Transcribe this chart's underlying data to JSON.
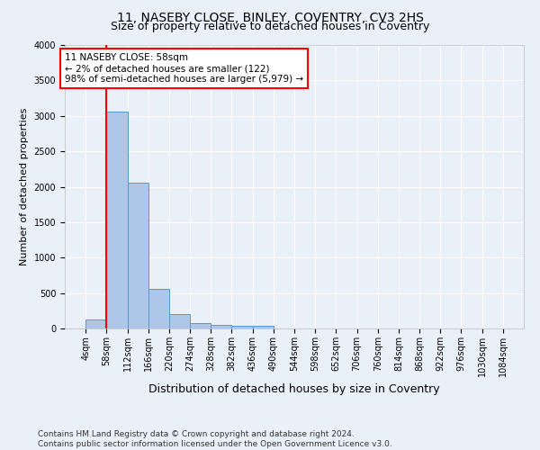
{
  "title_line1": "11, NASEBY CLOSE, BINLEY, COVENTRY, CV3 2HS",
  "title_line2": "Size of property relative to detached houses in Coventry",
  "xlabel": "Distribution of detached houses by size in Coventry",
  "ylabel": "Number of detached properties",
  "footnote_line1": "Contains HM Land Registry data © Crown copyright and database right 2024.",
  "footnote_line2": "Contains public sector information licensed under the Open Government Licence v3.0.",
  "bar_edges": [
    4,
    58,
    112,
    166,
    220,
    274,
    328,
    382,
    436,
    490,
    544,
    598,
    652,
    706,
    760,
    814,
    868,
    922,
    976,
    1030,
    1084
  ],
  "bar_heights": [
    130,
    3060,
    2060,
    560,
    200,
    80,
    55,
    40,
    40,
    0,
    0,
    0,
    0,
    0,
    0,
    0,
    0,
    0,
    0,
    0
  ],
  "bar_color": "#aec6e8",
  "bar_edgecolor": "#5a96c8",
  "annotation_text": "11 NASEBY CLOSE: 58sqm\n← 2% of detached houses are smaller (122)\n98% of semi-detached houses are larger (5,979) →",
  "annotation_box_color": "white",
  "annotation_box_edgecolor": "red",
  "vline_color": "red",
  "vline_x": 58,
  "ylim": [
    0,
    4000
  ],
  "yticks": [
    0,
    500,
    1000,
    1500,
    2000,
    2500,
    3000,
    3500,
    4000
  ],
  "background_color": "#eaf0f8",
  "grid_color": "white",
  "title1_fontsize": 10,
  "title2_fontsize": 9,
  "xlabel_fontsize": 9,
  "ylabel_fontsize": 8,
  "tick_fontsize": 7,
  "annotation_fontsize": 7.5,
  "footnote_fontsize": 6.5
}
